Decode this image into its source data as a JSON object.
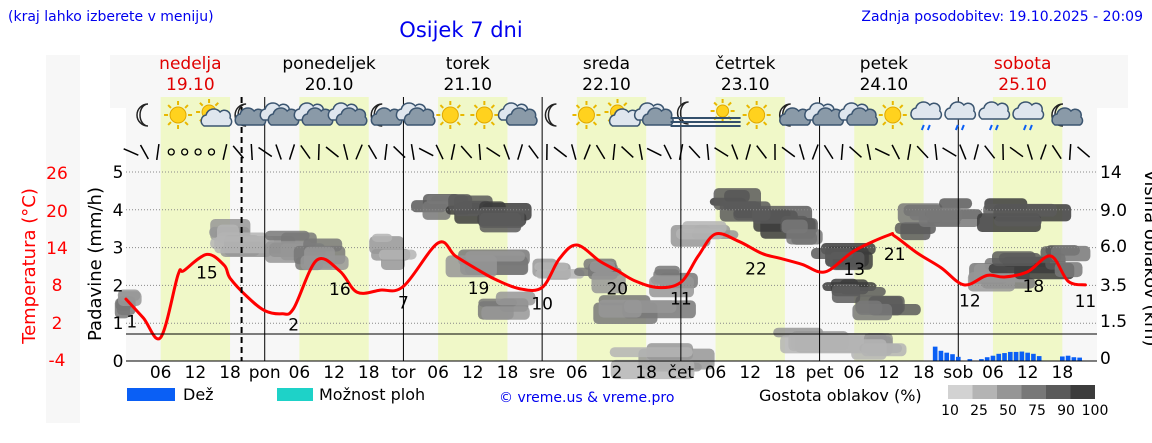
{
  "header": {
    "menu_hint": "(kraj lahko izberete v meniju)",
    "title": "Osijek 7 dni",
    "last_update": "Zadnja posodobitev: 19.10.2025 - 20:09"
  },
  "days": [
    {
      "name": "nedelja",
      "date": "19.10",
      "weekend": true
    },
    {
      "name": "ponedeljek",
      "date": "20.10",
      "weekend": false
    },
    {
      "name": "torek",
      "date": "21.10",
      "weekend": false
    },
    {
      "name": "sreda",
      "date": "22.10",
      "weekend": false
    },
    {
      "name": "četrtek",
      "date": "23.10",
      "weekend": false
    },
    {
      "name": "petek",
      "date": "24.10",
      "weekend": false
    },
    {
      "name": "sobota",
      "date": "25.10",
      "weekend": true
    }
  ],
  "weather_icons": [
    "moon",
    "sun",
    "sun-cloud",
    "moon-cloud",
    "cloud",
    "cloud",
    "cloud",
    "moon-cloud",
    "cloud",
    "sun",
    "sun",
    "cloud",
    "moon",
    "sun",
    "sun-cloud",
    "cloud",
    "moon-fog",
    "fog",
    "sun",
    "moon-cloud",
    "cloud",
    "cloud",
    "sun",
    "cloud-rain",
    "cloud-rain",
    "cloud-rain",
    "cloud-rain",
    "moon-cloud"
  ],
  "legend": {
    "rain": "Dež",
    "storm": "Možnost ploh",
    "copyright": "© vreme.us & vreme.pro",
    "cloud_density": "Gostota oblakov (%)",
    "density_levels": [
      "10",
      "25",
      "50",
      "75",
      "90",
      "100"
    ],
    "density_colors": [
      "#d2d2d2",
      "#b4b4b4",
      "#969696",
      "#787878",
      "#5a5a5a",
      "#3c3c3c"
    ]
  },
  "colors": {
    "title": "#0000ee",
    "temperature": "#ff0000",
    "rain": "#0a5ff5",
    "storm": "#1ed2c8",
    "daytime": "#f0f8c8"
  },
  "chart_data": {
    "type": "line",
    "title": "Osijek 7 dni",
    "xlabel": "",
    "x_hour_ticks": [
      "06",
      "12",
      "18",
      "pon",
      "06",
      "12",
      "18",
      "tor",
      "06",
      "12",
      "18",
      "sre",
      "06",
      "12",
      "18",
      "čet",
      "06",
      "12",
      "18",
      "pet",
      "06",
      "12",
      "18",
      "sob",
      "06",
      "12",
      "18"
    ],
    "y_left": {
      "label": "Padavine (mm/h)",
      "ticks": [
        "0",
        "1",
        "2",
        "3",
        "4",
        "5"
      ],
      "range": [
        0,
        5
      ]
    },
    "y_temp": {
      "label": "Temperatura (°C)",
      "ticks": [
        "26",
        "20",
        "14",
        "8",
        "2",
        "-4"
      ],
      "range": [
        -4,
        32
      ]
    },
    "y_right": {
      "label": "Višina oblakov (km)",
      "ticks": [
        "14",
        "9.0",
        "6.0",
        "3.5",
        "1.5",
        "0"
      ]
    },
    "series": [
      {
        "name": "Temperatura",
        "unit": "°C",
        "x_hours": [
          0,
          3,
          6,
          9,
          10,
          14,
          17,
          18,
          21,
          24,
          27,
          29,
          33,
          37,
          40,
          44,
          48,
          54,
          57,
          61,
          64,
          68,
          72,
          75,
          78,
          82,
          85,
          88,
          92,
          96,
          99,
          102,
          106,
          110,
          113,
          117,
          121,
          126,
          132,
          133,
          137,
          141,
          145,
          149,
          152,
          156,
          160,
          163,
          166
        ],
        "values": [
          7.8,
          4.2,
          0.5,
          12.4,
          13.2,
          16.3,
          14.2,
          11.8,
          8.2,
          5.6,
          5.0,
          6.0,
          15.2,
          13.1,
          9.1,
          9.5,
          10.2,
          18.5,
          16.0,
          13.3,
          11.5,
          9.8,
          10.0,
          15.5,
          18.1,
          15.0,
          13.2,
          11.3,
          10.0,
          11.0,
          16.0,
          20.2,
          18.8,
          16.5,
          15.6,
          14.4,
          13.0,
          17.0,
          20.0,
          19.8,
          16.5,
          13.8,
          10.5,
          12.3,
          12.0,
          13.0,
          16.0,
          11.2,
          10.5
        ]
      },
      {
        "name": "Dež",
        "unit": "mm/h",
        "x_hours": [
          140,
          141,
          142,
          143,
          144,
          146,
          148,
          149,
          150,
          151,
          152,
          153,
          154,
          155,
          156,
          157,
          158,
          162,
          163,
          164,
          165
        ],
        "values": [
          0.38,
          0.27,
          0.22,
          0.18,
          0.11,
          0.05,
          0.05,
          0.1,
          0.14,
          0.19,
          0.21,
          0.24,
          0.24,
          0.25,
          0.22,
          0.19,
          0.13,
          0.12,
          0.14,
          0.1,
          0.09
        ]
      }
    ],
    "data_labels": [
      {
        "hour": 1,
        "text": "1"
      },
      {
        "hour": 14,
        "text": "15"
      },
      {
        "hour": 29,
        "text": "2"
      },
      {
        "hour": 37,
        "text": "16"
      },
      {
        "hour": 48,
        "text": "7"
      },
      {
        "hour": 61,
        "text": "19"
      },
      {
        "hour": 72,
        "text": "10"
      },
      {
        "hour": 85,
        "text": "20"
      },
      {
        "hour": 96,
        "text": "11"
      },
      {
        "hour": 109,
        "text": "22"
      },
      {
        "hour": 126,
        "text": "13"
      },
      {
        "hour": 133,
        "text": "21"
      },
      {
        "hour": 146,
        "text": "12"
      },
      {
        "hour": 157,
        "text": "18"
      },
      {
        "hour": 166,
        "text": "11"
      }
    ],
    "current_time_hour": 20
  }
}
